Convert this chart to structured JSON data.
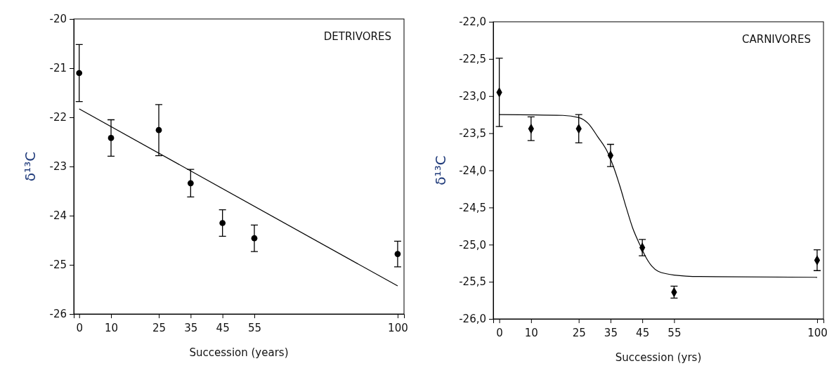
{
  "chart_data": [
    {
      "type": "scatter",
      "xlabel": "Succession (years)",
      "ylabel": "δ¹³C",
      "annotations": [
        "DETRIVORES"
      ],
      "xlim": [
        -1.7,
        102
      ],
      "ylim": [
        -26,
        -20
      ],
      "xticks": [
        0,
        10,
        25,
        35,
        45,
        55,
        100
      ],
      "yticks": [
        -26,
        -25,
        -24,
        -23,
        -22,
        -21,
        -20
      ],
      "grid": false,
      "series": [
        {
          "marker": "circle",
          "color": "#000000",
          "x": [
            0,
            10,
            25,
            35,
            45,
            55,
            100
          ],
          "values": [
            -21.1,
            -22.42,
            -22.26,
            -23.34,
            -24.15,
            -24.46,
            -24.78
          ],
          "errors": [
            0.58,
            0.37,
            0.52,
            0.28,
            0.27,
            0.27,
            0.26
          ]
        },
        {
          "type": "line",
          "color": "#000000",
          "x": [
            0,
            100
          ],
          "values": [
            -21.83,
            -25.43
          ]
        }
      ]
    },
    {
      "type": "scatter",
      "xlabel": "Succession (yrs)",
      "ylabel": "δ¹³C",
      "annotations": [
        "CARNIVORES"
      ],
      "xlim": [
        -1.9,
        102
      ],
      "ylim": [
        -26,
        -22
      ],
      "xticks": [
        0,
        10,
        25,
        35,
        45,
        55,
        100
      ],
      "yticks": [
        {
          "value": -26,
          "label": "-26,0"
        },
        {
          "value": -25.5,
          "label": "-25,5"
        },
        {
          "value": -25,
          "label": "-25,0"
        },
        {
          "value": -24.5,
          "label": "-24,5"
        },
        {
          "value": -24,
          "label": "-24,0"
        },
        {
          "value": -23.5,
          "label": "-23,5"
        },
        {
          "value": -23,
          "label": "-23,0"
        },
        {
          "value": -22.5,
          "label": "-22,5"
        },
        {
          "value": -22,
          "label": "-22,0"
        }
      ],
      "grid": false,
      "series": [
        {
          "marker": "diamond",
          "color": "#000000",
          "x": [
            0,
            10,
            25,
            35,
            45,
            55,
            100
          ],
          "values": [
            -22.95,
            -23.44,
            -23.44,
            -23.8,
            -25.04,
            -25.64,
            -25.21
          ],
          "errors": [
            0.46,
            0.16,
            0.19,
            0.15,
            0.11,
            0.08,
            0.14
          ]
        },
        {
          "type": "line",
          "color": "#000000",
          "x": [
            0,
            20,
            25,
            28,
            31,
            34,
            36,
            38,
            40,
            42,
            44,
            46,
            48,
            50,
            55,
            63,
            100
          ],
          "values": [
            -23.25,
            -23.26,
            -23.29,
            -23.37,
            -23.55,
            -23.75,
            -23.96,
            -24.22,
            -24.51,
            -24.78,
            -24.98,
            -25.16,
            -25.29,
            -25.36,
            -25.41,
            -25.43,
            -25.44
          ]
        }
      ]
    }
  ]
}
